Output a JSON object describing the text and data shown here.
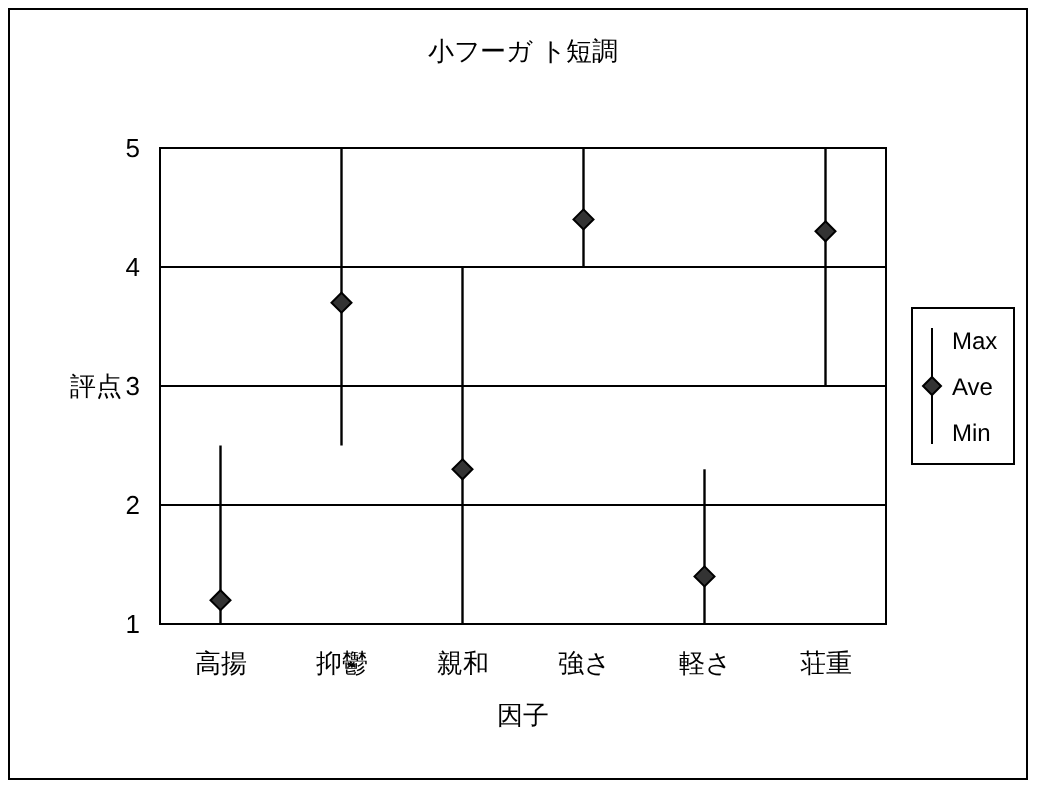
{
  "chart_data": {
    "type": "scatter",
    "title": "小フーガ ト短調",
    "xlabel": "因子",
    "ylabel": "評点",
    "categories": [
      "高揚",
      "抑鬱",
      "親和",
      "強さ",
      "軽さ",
      "荘重"
    ],
    "series": [
      {
        "name": "Ave",
        "color": "#333333",
        "values": [
          1.2,
          3.7,
          2.3,
          4.4,
          1.4,
          4.3
        ],
        "errors": [
          [
            1,
            2.5
          ],
          [
            2.5,
            5
          ],
          [
            1,
            4
          ],
          [
            4,
            5
          ],
          [
            1,
            2.3
          ],
          [
            3,
            5
          ]
        ]
      }
    ],
    "annotations": [
      "Max",
      "Min"
    ],
    "marker": "diamond",
    "ylim": [
      1,
      5
    ],
    "yticks": [
      1,
      2,
      3,
      4,
      5
    ],
    "grid": "y",
    "legend": "right"
  }
}
